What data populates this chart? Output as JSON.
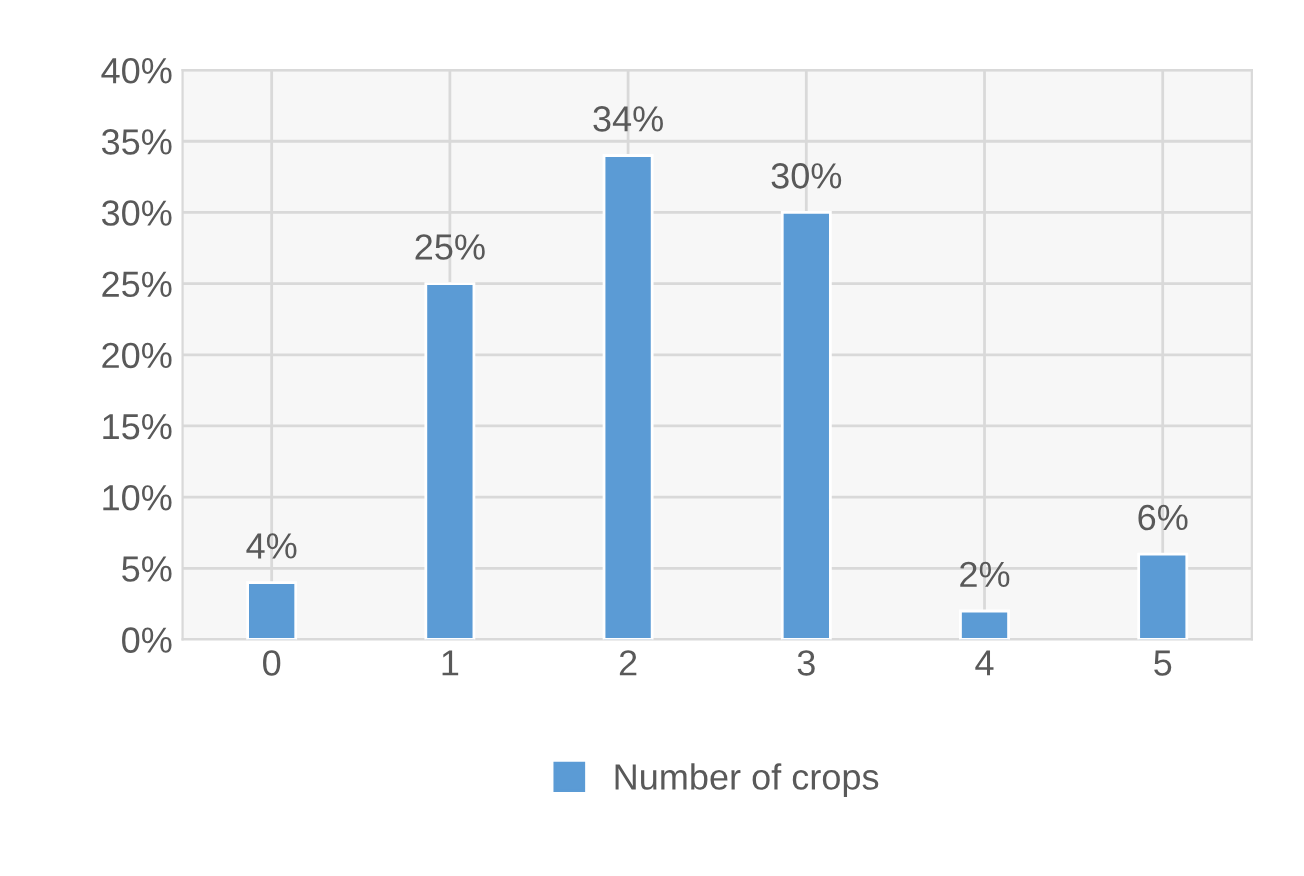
{
  "chart_data": {
    "type": "bar",
    "categories": [
      "0",
      "1",
      "2",
      "3",
      "4",
      "5"
    ],
    "series": [
      {
        "name": "Number of crops",
        "color": "#5b9bd5",
        "values": [
          4,
          25,
          34,
          30,
          2,
          6
        ],
        "value_labels": [
          "4%",
          "25%",
          "34%",
          "30%",
          "2%",
          "6%"
        ]
      }
    ],
    "ylim": [
      0,
      40
    ],
    "yticks": [
      {
        "value": 0,
        "label": "0%"
      },
      {
        "value": 5,
        "label": "5%"
      },
      {
        "value": 10,
        "label": "10%"
      },
      {
        "value": 15,
        "label": "15%"
      },
      {
        "value": 20,
        "label": "20%"
      },
      {
        "value": 25,
        "label": "25%"
      },
      {
        "value": 30,
        "label": "30%"
      },
      {
        "value": 35,
        "label": "35%"
      },
      {
        "value": 40,
        "label": "40%"
      }
    ],
    "grid": true,
    "legend": "bottom"
  }
}
